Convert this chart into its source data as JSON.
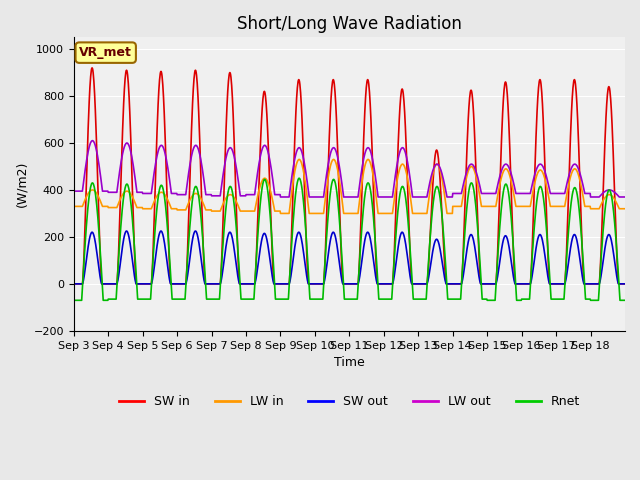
{
  "title": "Short/Long Wave Radiation",
  "xlabel": "Time",
  "ylabel": "(W/m2)",
  "ylim": [
    -200,
    1050
  ],
  "yticks": [
    -200,
    0,
    200,
    400,
    600,
    800,
    1000
  ],
  "background_color": "#e8e8e8",
  "plot_bg_color": "#f0f0f0",
  "annotation_text": "VR_met",
  "x_tick_labels": [
    "Sep 3",
    "Sep 4",
    "Sep 5",
    "Sep 6",
    "Sep 7",
    "Sep 8",
    "Sep 9",
    "Sep 10",
    "Sep 11",
    "Sep 12",
    "Sep 13",
    "Sep 14",
    "Sep 15",
    "Sep 16",
    "Sep 17",
    "Sep 18"
  ],
  "legend_labels": [
    "SW in",
    "LW in",
    "SW out",
    "LW out",
    "Rnet"
  ],
  "legend_colors": [
    "#ff0000",
    "#ff9900",
    "#0000ff",
    "#cc00cc",
    "#00cc00"
  ],
  "line_colors": {
    "SW_in": "#dd0000",
    "LW_in": "#ff9900",
    "SW_out": "#0000cc",
    "LW_out": "#9900cc",
    "Rnet": "#00bb00"
  },
  "num_days": 16,
  "SW_in_peaks": [
    920,
    910,
    905,
    910,
    900,
    820,
    870,
    870,
    870,
    830,
    570,
    825,
    860,
    870,
    870,
    840
  ],
  "LW_in_daytime": [
    400,
    395,
    390,
    385,
    380,
    450,
    530,
    530,
    530,
    510,
    510,
    500,
    490,
    485,
    490,
    380
  ],
  "LW_in_night": [
    330,
    325,
    320,
    315,
    310,
    310,
    300,
    300,
    300,
    300,
    300,
    330,
    330,
    330,
    330,
    320
  ],
  "SW_out_peaks": [
    220,
    225,
    225,
    225,
    220,
    215,
    220,
    220,
    220,
    220,
    190,
    210,
    205,
    210,
    210,
    210
  ],
  "LW_out_daytime": [
    610,
    600,
    590,
    590,
    580,
    590,
    580,
    580,
    580,
    580,
    510,
    510,
    510,
    510,
    510,
    400
  ],
  "LW_out_night": [
    395,
    390,
    385,
    380,
    375,
    380,
    370,
    370,
    370,
    370,
    370,
    385,
    385,
    385,
    385,
    370
  ],
  "Rnet_peaks": [
    430,
    425,
    420,
    415,
    415,
    445,
    450,
    445,
    430,
    415,
    415,
    430,
    425,
    415,
    410,
    400
  ],
  "Rnet_night": [
    -70,
    -65,
    -65,
    -65,
    -65,
    -65,
    -65,
    -65,
    -65,
    -65,
    -65,
    -65,
    -70,
    -65,
    -65,
    -70
  ]
}
